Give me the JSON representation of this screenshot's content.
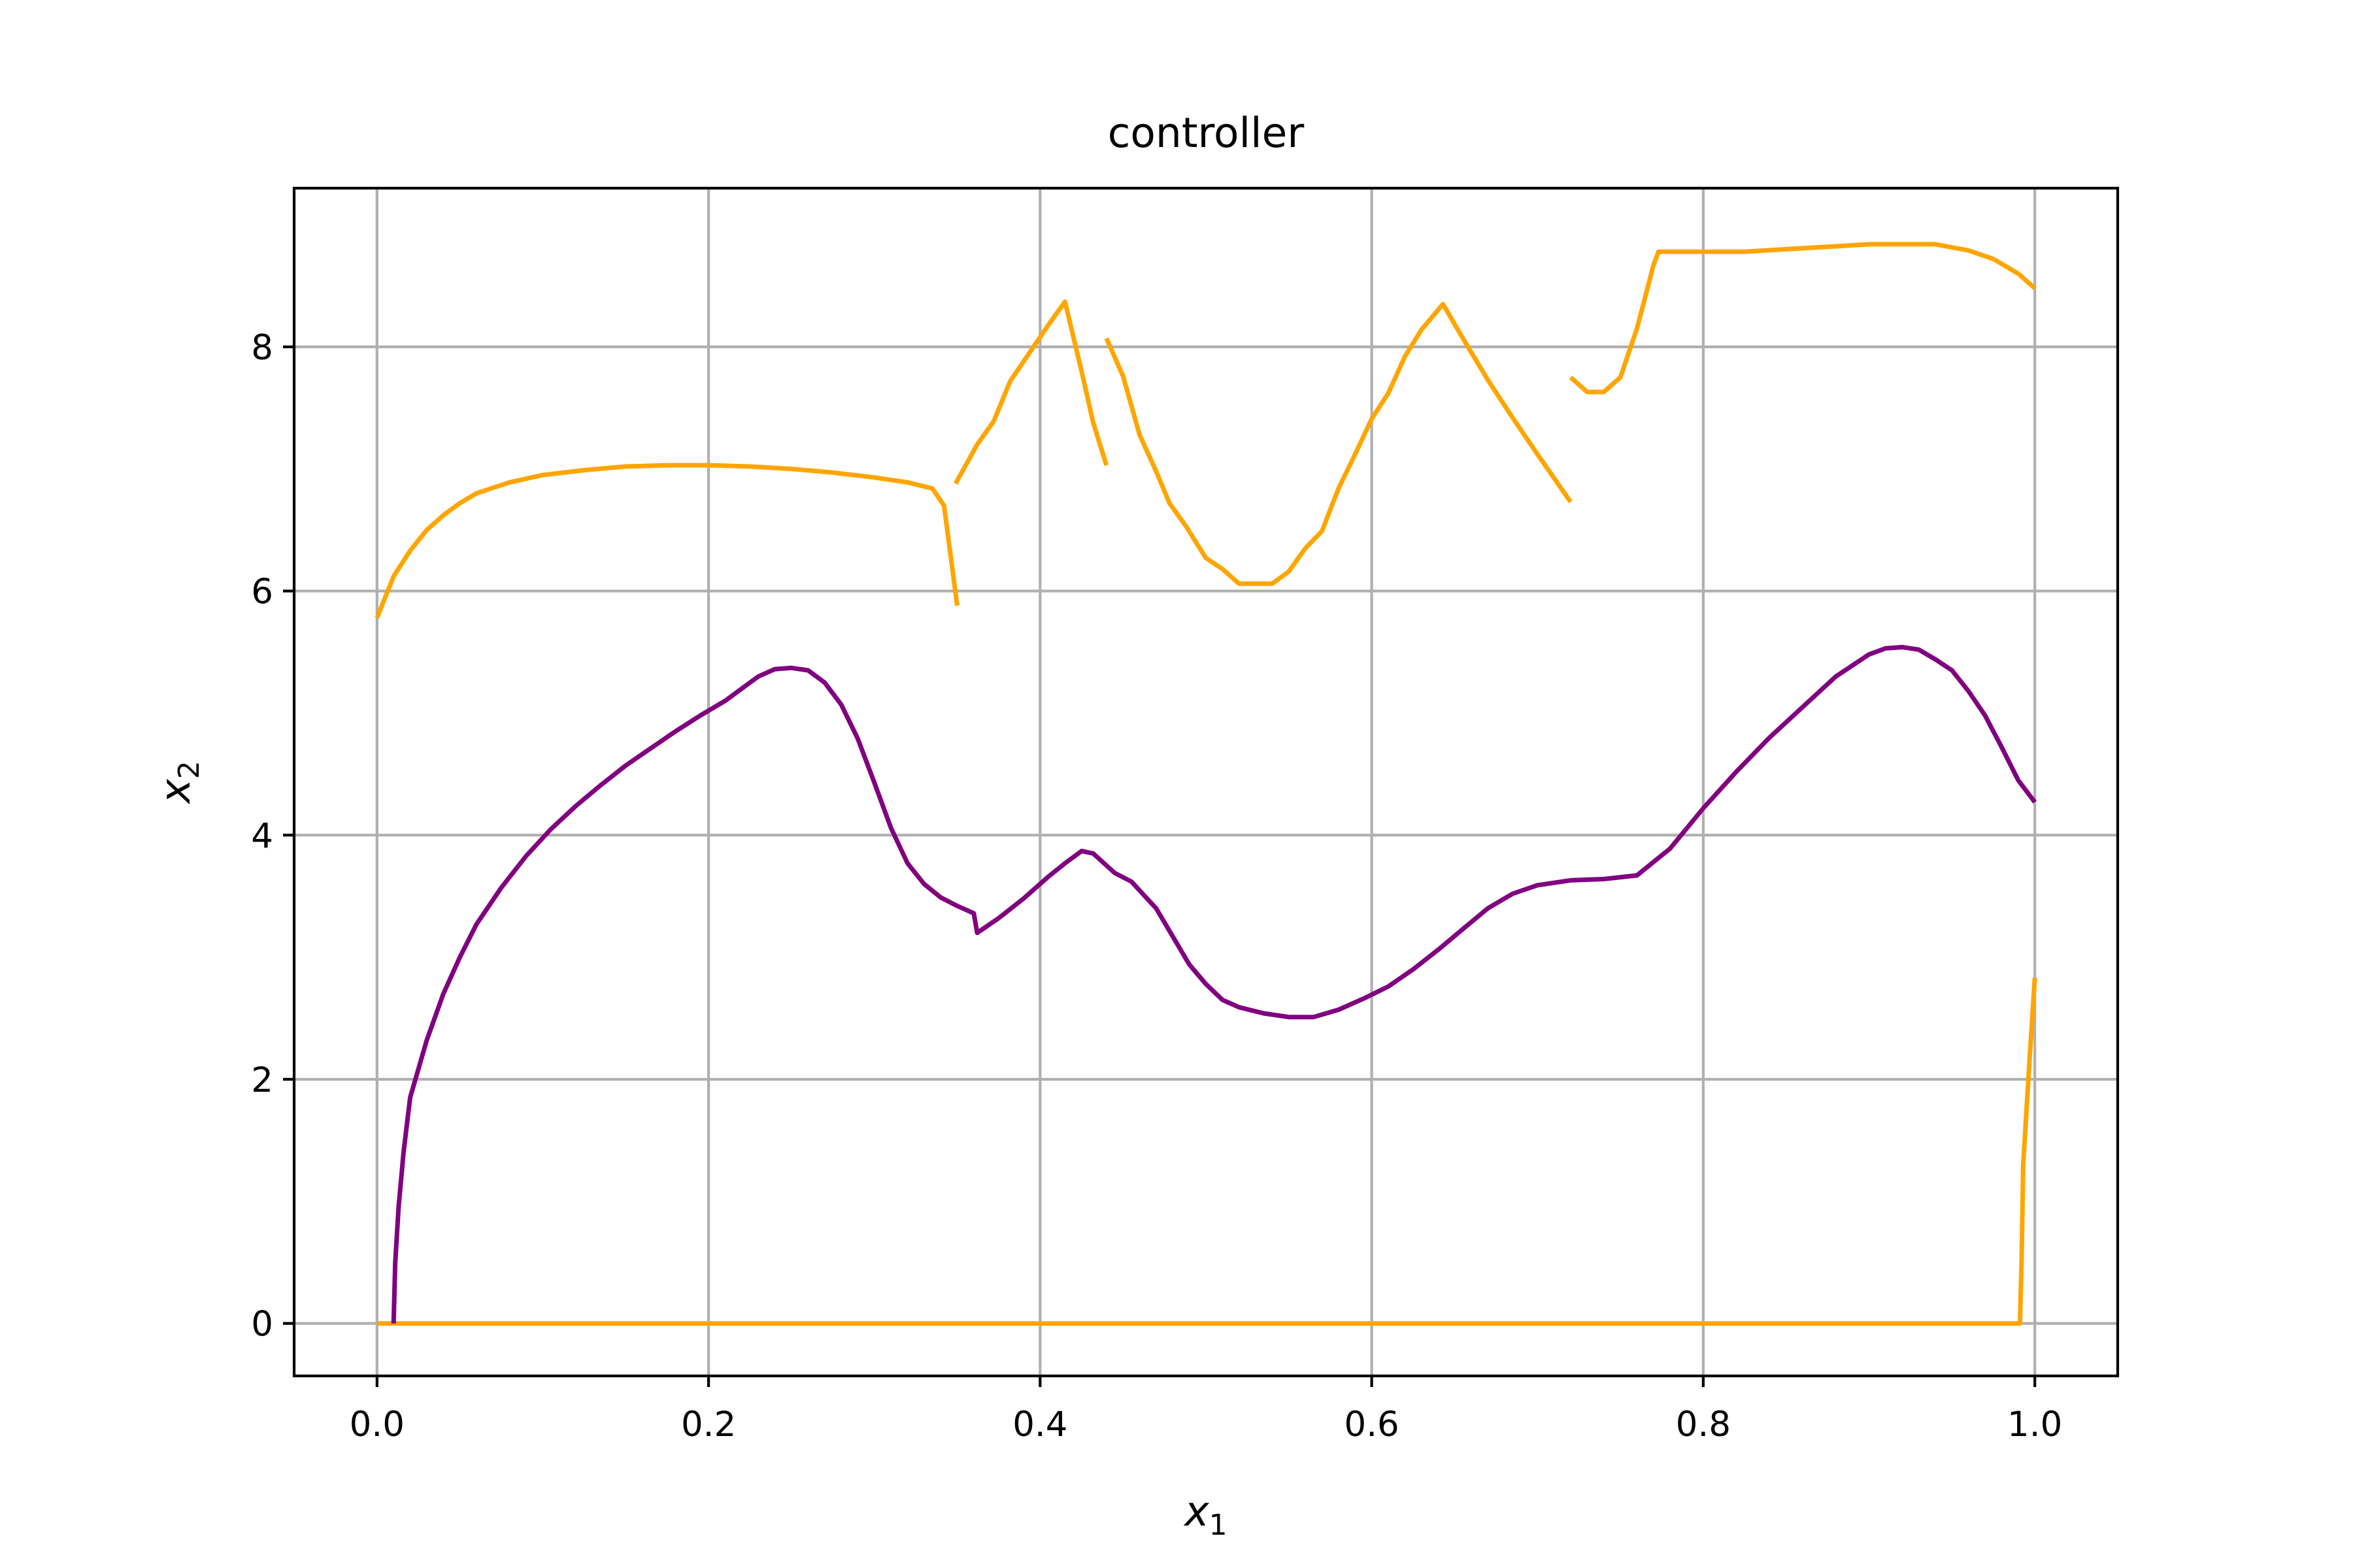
{
  "chart_data": {
    "type": "line",
    "title": "controller",
    "xlabel": {
      "base": "x",
      "sub": "1"
    },
    "ylabel": {
      "base": "x",
      "sub": "2"
    },
    "xlim": [
      -0.05,
      1.05
    ],
    "ylim": [
      -0.43,
      9.3
    ],
    "xticks": [
      0.0,
      0.2,
      0.4,
      0.6,
      0.8,
      1.0
    ],
    "xtick_labels": [
      "0.0",
      "0.2",
      "0.4",
      "0.6",
      "0.8",
      "1.0"
    ],
    "yticks": [
      0,
      2,
      4,
      6,
      8
    ],
    "ytick_labels": [
      "0",
      "2",
      "4",
      "6",
      "8"
    ],
    "grid": true,
    "legend": "none",
    "series": [
      {
        "color": "#FFA500",
        "segments": [
          [
            [
              0.0,
              5.78
            ],
            [
              0.01,
              6.12
            ],
            [
              0.02,
              6.33
            ],
            [
              0.03,
              6.5
            ],
            [
              0.04,
              6.62
            ],
            [
              0.05,
              6.72
            ],
            [
              0.06,
              6.8
            ],
            [
              0.08,
              6.89
            ],
            [
              0.1,
              6.95
            ],
            [
              0.125,
              6.99
            ],
            [
              0.15,
              7.02
            ],
            [
              0.175,
              7.03
            ],
            [
              0.2,
              7.03
            ],
            [
              0.225,
              7.02
            ],
            [
              0.25,
              7.0
            ],
            [
              0.275,
              6.97
            ],
            [
              0.3,
              6.93
            ],
            [
              0.32,
              6.89
            ],
            [
              0.335,
              6.84
            ],
            [
              0.342,
              6.7
            ],
            [
              0.35,
              5.88
            ]
          ],
          [
            [
              0.349,
              6.88
            ],
            [
              0.362,
              7.2
            ],
            [
              0.372,
              7.39
            ],
            [
              0.382,
              7.72
            ],
            [
              0.395,
              7.98
            ],
            [
              0.405,
              8.18
            ],
            [
              0.415,
              8.37
            ],
            [
              0.425,
              7.8
            ],
            [
              0.432,
              7.38
            ],
            [
              0.44,
              7.03
            ]
          ],
          [
            [
              0.44,
              8.07
            ],
            [
              0.45,
              7.76
            ],
            [
              0.46,
              7.28
            ],
            [
              0.47,
              6.98
            ],
            [
              0.478,
              6.72
            ],
            [
              0.488,
              6.53
            ],
            [
              0.5,
              6.27
            ],
            [
              0.51,
              6.18
            ],
            [
              0.52,
              6.06
            ],
            [
              0.53,
              6.06
            ],
            [
              0.54,
              6.06
            ],
            [
              0.55,
              6.16
            ],
            [
              0.56,
              6.35
            ],
            [
              0.57,
              6.49
            ],
            [
              0.58,
              6.84
            ],
            [
              0.59,
              7.12
            ],
            [
              0.6,
              7.41
            ],
            [
              0.61,
              7.62
            ],
            [
              0.62,
              7.92
            ],
            [
              0.63,
              8.14
            ],
            [
              0.643,
              8.35
            ],
            [
              0.655,
              8.07
            ],
            [
              0.67,
              7.73
            ],
            [
              0.685,
              7.42
            ],
            [
              0.7,
              7.12
            ],
            [
              0.72,
              6.73
            ]
          ],
          [
            [
              0.72,
              7.75
            ],
            [
              0.73,
              7.63
            ],
            [
              0.74,
              7.63
            ],
            [
              0.75,
              7.75
            ],
            [
              0.76,
              8.15
            ],
            [
              0.77,
              8.67
            ],
            [
              0.773,
              8.78
            ],
            [
              0.8,
              8.78
            ],
            [
              0.825,
              8.78
            ],
            [
              0.85,
              8.8
            ],
            [
              0.875,
              8.82
            ],
            [
              0.9,
              8.84
            ],
            [
              0.925,
              8.84
            ],
            [
              0.94,
              8.84
            ],
            [
              0.96,
              8.79
            ],
            [
              0.975,
              8.72
            ],
            [
              0.99,
              8.6
            ],
            [
              1.0,
              8.48
            ]
          ]
        ]
      },
      {
        "color": "#FFA500",
        "segments": [
          [
            [
              0.0,
              0.0
            ],
            [
              0.25,
              0.0
            ],
            [
              0.5,
              0.0
            ],
            [
              0.75,
              0.0
            ],
            [
              0.991,
              0.0
            ],
            [
              0.992,
              0.5
            ],
            [
              0.993,
              1.3
            ],
            [
              0.995,
              1.75
            ],
            [
              0.997,
              2.2
            ],
            [
              1.0,
              2.83
            ]
          ]
        ]
      },
      {
        "color": "#800080",
        "segments": [
          [
            [
              0.01,
              0.0
            ],
            [
              0.011,
              0.5
            ],
            [
              0.013,
              0.95
            ],
            [
              0.016,
              1.4
            ],
            [
              0.02,
              1.85
            ],
            [
              0.03,
              2.32
            ],
            [
              0.04,
              2.7
            ],
            [
              0.05,
              3.0
            ],
            [
              0.06,
              3.27
            ],
            [
              0.075,
              3.57
            ],
            [
              0.09,
              3.83
            ],
            [
              0.105,
              4.05
            ],
            [
              0.12,
              4.24
            ],
            [
              0.135,
              4.41
            ],
            [
              0.15,
              4.57
            ],
            [
              0.165,
              4.71
            ],
            [
              0.18,
              4.85
            ],
            [
              0.195,
              4.98
            ],
            [
              0.21,
              5.1
            ],
            [
              0.22,
              5.2
            ],
            [
              0.23,
              5.3
            ],
            [
              0.24,
              5.36
            ],
            [
              0.25,
              5.37
            ],
            [
              0.26,
              5.35
            ],
            [
              0.27,
              5.25
            ],
            [
              0.28,
              5.07
            ],
            [
              0.29,
              4.79
            ],
            [
              0.3,
              4.43
            ],
            [
              0.31,
              4.06
            ],
            [
              0.32,
              3.77
            ],
            [
              0.33,
              3.6
            ],
            [
              0.34,
              3.49
            ],
            [
              0.35,
              3.42
            ],
            [
              0.36,
              3.36
            ],
            [
              0.362,
              3.2
            ],
            [
              0.375,
              3.32
            ],
            [
              0.39,
              3.48
            ],
            [
              0.405,
              3.66
            ],
            [
              0.415,
              3.77
            ],
            [
              0.425,
              3.87
            ],
            [
              0.432,
              3.85
            ],
            [
              0.445,
              3.69
            ],
            [
              0.455,
              3.62
            ],
            [
              0.47,
              3.4
            ],
            [
              0.48,
              3.17
            ],
            [
              0.49,
              2.94
            ],
            [
              0.5,
              2.78
            ],
            [
              0.51,
              2.65
            ],
            [
              0.52,
              2.59
            ],
            [
              0.535,
              2.54
            ],
            [
              0.55,
              2.51
            ],
            [
              0.565,
              2.51
            ],
            [
              0.58,
              2.57
            ],
            [
              0.595,
              2.66
            ],
            [
              0.61,
              2.76
            ],
            [
              0.625,
              2.9
            ],
            [
              0.64,
              3.06
            ],
            [
              0.655,
              3.23
            ],
            [
              0.67,
              3.4
            ],
            [
              0.685,
              3.52
            ],
            [
              0.7,
              3.59
            ],
            [
              0.72,
              3.63
            ],
            [
              0.74,
              3.64
            ],
            [
              0.76,
              3.67
            ],
            [
              0.78,
              3.89
            ],
            [
              0.8,
              4.22
            ],
            [
              0.82,
              4.52
            ],
            [
              0.84,
              4.8
            ],
            [
              0.86,
              5.05
            ],
            [
              0.88,
              5.3
            ],
            [
              0.9,
              5.48
            ],
            [
              0.91,
              5.53
            ],
            [
              0.92,
              5.54
            ],
            [
              0.93,
              5.52
            ],
            [
              0.94,
              5.44
            ],
            [
              0.95,
              5.35
            ],
            [
              0.96,
              5.18
            ],
            [
              0.97,
              4.98
            ],
            [
              0.98,
              4.72
            ],
            [
              0.99,
              4.45
            ],
            [
              1.0,
              4.27
            ]
          ]
        ]
      }
    ]
  }
}
